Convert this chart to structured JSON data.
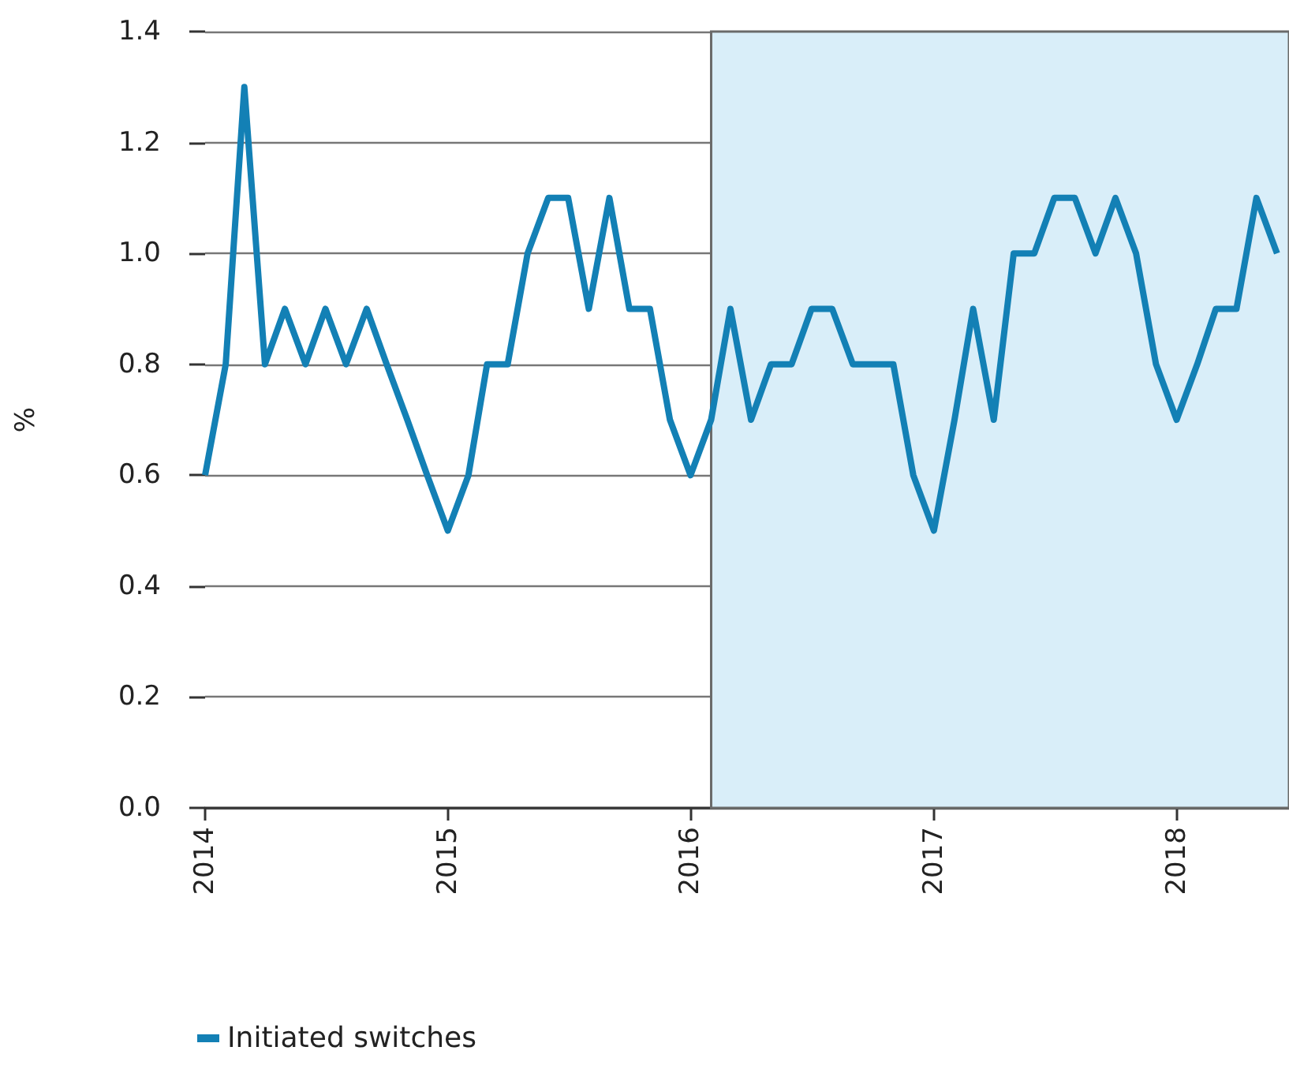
{
  "chart_data": {
    "type": "line",
    "ylabel": "%",
    "x": [
      "2014-01",
      "2014-02",
      "2014-03",
      "2014-04",
      "2014-05",
      "2014-06",
      "2014-07",
      "2014-08",
      "2014-09",
      "2014-10",
      "2014-11",
      "2014-12",
      "2015-01",
      "2015-02",
      "2015-03",
      "2015-04",
      "2015-05",
      "2015-06",
      "2015-07",
      "2015-08",
      "2015-09",
      "2015-10",
      "2015-11",
      "2015-12",
      "2016-01",
      "2016-02",
      "2016-03",
      "2016-04",
      "2016-05",
      "2016-06",
      "2016-07",
      "2016-08",
      "2016-09",
      "2016-10",
      "2016-11",
      "2016-12",
      "2017-01",
      "2017-02",
      "2017-03",
      "2017-04",
      "2017-05",
      "2017-06",
      "2017-07",
      "2017-08",
      "2017-09",
      "2017-10",
      "2017-11",
      "2017-12",
      "2018-01",
      "2018-02",
      "2018-03",
      "2018-04",
      "2018-05",
      "2018-06"
    ],
    "series": [
      {
        "name": "Initiated switches",
        "color": "#1380b5",
        "values": [
          0.6,
          0.8,
          1.3,
          0.8,
          0.9,
          0.8,
          0.9,
          0.8,
          0.9,
          0.8,
          0.7,
          0.6,
          0.5,
          0.6,
          0.8,
          0.8,
          1.0,
          1.1,
          1.1,
          0.9,
          1.1,
          0.9,
          0.9,
          0.7,
          0.6,
          0.7,
          0.9,
          0.7,
          0.8,
          0.8,
          0.9,
          0.9,
          0.8,
          0.8,
          0.8,
          0.6,
          0.5,
          0.7,
          0.9,
          0.7,
          1.0,
          1.0,
          1.1,
          1.1,
          1.0,
          1.1,
          1.0,
          0.8,
          0.7,
          0.8,
          0.9,
          0.9,
          1.1,
          1.0
        ]
      }
    ],
    "xlim": [
      "2014-01-01",
      "2018-06-19"
    ],
    "xticks": [
      {
        "value": "2014-01-01",
        "label": "2014"
      },
      {
        "value": "2015-01-01",
        "label": "2015"
      },
      {
        "value": "2016-01-01",
        "label": "2016"
      },
      {
        "value": "2017-01-01",
        "label": "2017"
      },
      {
        "value": "2018-01-01",
        "label": "2018"
      }
    ],
    "ylim": [
      0,
      1.4
    ],
    "yticks": [
      {
        "value": 0,
        "label": "0.0"
      },
      0.2,
      0.4,
      0.6,
      0.8,
      {
        "value": 1,
        "label": "1.0"
      },
      1.2,
      1.4
    ],
    "bands": [
      {
        "axis": "x",
        "from": "2016-02-01",
        "to": "2018-06-19",
        "color": "#d9eef9"
      }
    ],
    "grid": "y",
    "legend": "bottom left",
    "marker": "none",
    "line_style": "solid"
  }
}
